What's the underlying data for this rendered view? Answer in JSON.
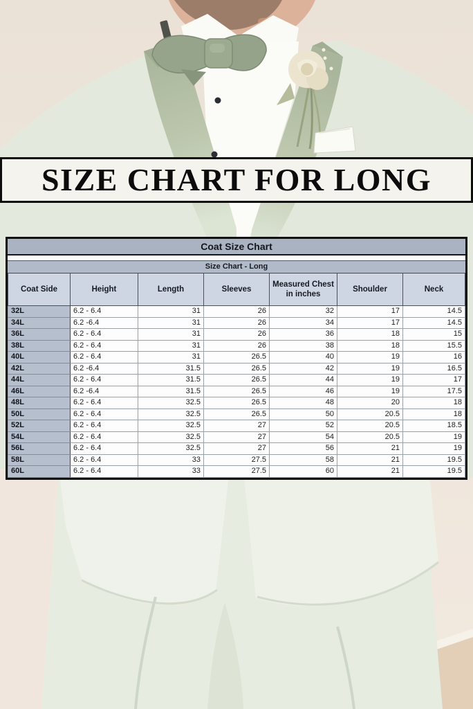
{
  "banner": {
    "title": "SIZE CHART FOR LONG"
  },
  "colors": {
    "banner_background": "#f5f3ee",
    "banner_border": "#0e0e0e",
    "table_title_bar": "#a9b3c2",
    "table_subtitle_bar": "#b0bac8",
    "table_header_row": "#cfd6e3",
    "table_row_label_column": "#b5bfce",
    "table_cell_background": "#fdfdfd",
    "suit_mint": "#e3eadd",
    "lapel_sage": "#a7b399",
    "bowtie_sage": "#96a48b",
    "shirt_white": "#fbfbf8",
    "backdrop_cream": "#ece3d9",
    "floor_tan": "#e3cfb8"
  },
  "photo": {
    "subject": "man wearing mint green tuxedo with sage bow tie and white rose boutonniere"
  },
  "chart_data": {
    "type": "table",
    "title": "Coat Size Chart",
    "subtitle": "Size Chart - Long",
    "columns": [
      "Coat Side",
      "Height",
      "Length",
      "Sleeves",
      "Measured Chest in inches",
      "Shoulder",
      "Neck"
    ],
    "rows": [
      [
        "32L",
        "6.2 - 6.4",
        "31",
        "26",
        "32",
        "17",
        "14.5"
      ],
      [
        "34L",
        "6.2 -6.4",
        "31",
        "26",
        "34",
        "17",
        "14.5"
      ],
      [
        "36L",
        "6.2 - 6.4",
        "31",
        "26",
        "36",
        "18",
        "15"
      ],
      [
        "38L",
        "6.2 - 6.4",
        "31",
        "26",
        "38",
        "18",
        "15.5"
      ],
      [
        "40L",
        "6.2 - 6.4",
        "31",
        "26.5",
        "40",
        "19",
        "16"
      ],
      [
        "42L",
        "6.2 -6.4",
        "31.5",
        "26.5",
        "42",
        "19",
        "16.5"
      ],
      [
        "44L",
        "6.2 - 6.4",
        "31.5",
        "26.5",
        "44",
        "19",
        "17"
      ],
      [
        "46L",
        "6.2 -6.4",
        "31.5",
        "26.5",
        "46",
        "19",
        "17.5"
      ],
      [
        "48L",
        "6.2 - 6.4",
        "32.5",
        "26.5",
        "48",
        "20",
        "18"
      ],
      [
        "50L",
        "6.2 - 6.4",
        "32.5",
        "26.5",
        "50",
        "20.5",
        "18"
      ],
      [
        "52L",
        "6.2 - 6.4",
        "32.5",
        "27",
        "52",
        "20.5",
        "18.5"
      ],
      [
        "54L",
        "6.2 - 6.4",
        "32.5",
        "27",
        "54",
        "20.5",
        "19"
      ],
      [
        "56L",
        "6.2 - 6.4",
        "32.5",
        "27",
        "56",
        "21",
        "19"
      ],
      [
        "58L",
        "6.2 - 6.4",
        "33",
        "27.5",
        "58",
        "21",
        "19.5"
      ],
      [
        "60L",
        "6.2 - 6.4",
        "33",
        "27.5",
        "60",
        "21",
        "19.5"
      ]
    ]
  }
}
